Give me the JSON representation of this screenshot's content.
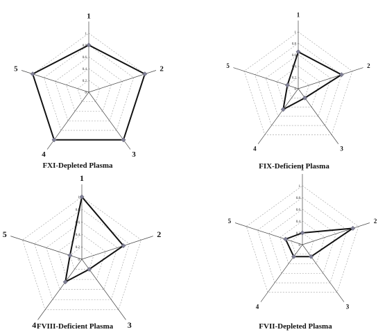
{
  "chart_data": [
    {
      "type": "radar",
      "title": "FXI-Depleted Plasma",
      "axes": [
        "1",
        "2",
        "3",
        "4",
        "5"
      ],
      "ticks": [
        "0",
        "0.2",
        "0.4",
        "0.6",
        "0.8",
        "1"
      ],
      "rlim": [
        0,
        1
      ],
      "grid": true,
      "values": [
        0.8,
        1.0,
        1.0,
        1.0,
        1.0
      ],
      "colors": {
        "line": "#111111",
        "marker": "#7f7f94",
        "grid": "#9a9a9a",
        "axis": "#444444"
      }
    },
    {
      "type": "radar",
      "title": "FIX-Deficient Plasma",
      "axes": [
        "1",
        "2",
        "3",
        "4",
        "5"
      ],
      "ticks": [
        "0",
        "0.2",
        "0.4",
        "0.6",
        "0.8",
        "1"
      ],
      "rlim": [
        0,
        1
      ],
      "grid": true,
      "values": [
        0.65,
        0.8,
        0.2,
        0.45,
        0.2
      ],
      "colors": {
        "line": "#111111",
        "marker": "#7f7f94",
        "grid": "#9a9a9a",
        "axis": "#444444"
      }
    },
    {
      "type": "radar",
      "title": "FVIII-Deficient Plasma",
      "axes": [
        "1",
        "2",
        "3",
        "4",
        "5"
      ],
      "ticks": [
        "0",
        "0.2",
        "0.4",
        "0.6",
        "0.8",
        "1"
      ],
      "rlim": [
        0,
        1
      ],
      "grid": true,
      "values": [
        1.0,
        0.7,
        0.2,
        0.45,
        0.2
      ],
      "colors": {
        "line": "#111111",
        "marker": "#7f7f94",
        "grid": "#9a9a9a",
        "axis": "#444444"
      }
    },
    {
      "type": "radar",
      "title": "FVII-Depleted Plasma",
      "axes": [
        "1",
        "2",
        "3",
        "4",
        "5"
      ],
      "ticks": [
        "0",
        "0.2",
        "0.4",
        "0.6",
        "0.8",
        "1"
      ],
      "rlim": [
        0,
        1
      ],
      "grid": true,
      "values": [
        0.2,
        0.9,
        0.25,
        0.25,
        0.3
      ],
      "colors": {
        "line": "#111111",
        "marker": "#7f7f94",
        "grid": "#9a9a9a",
        "axis": "#444444"
      }
    }
  ]
}
